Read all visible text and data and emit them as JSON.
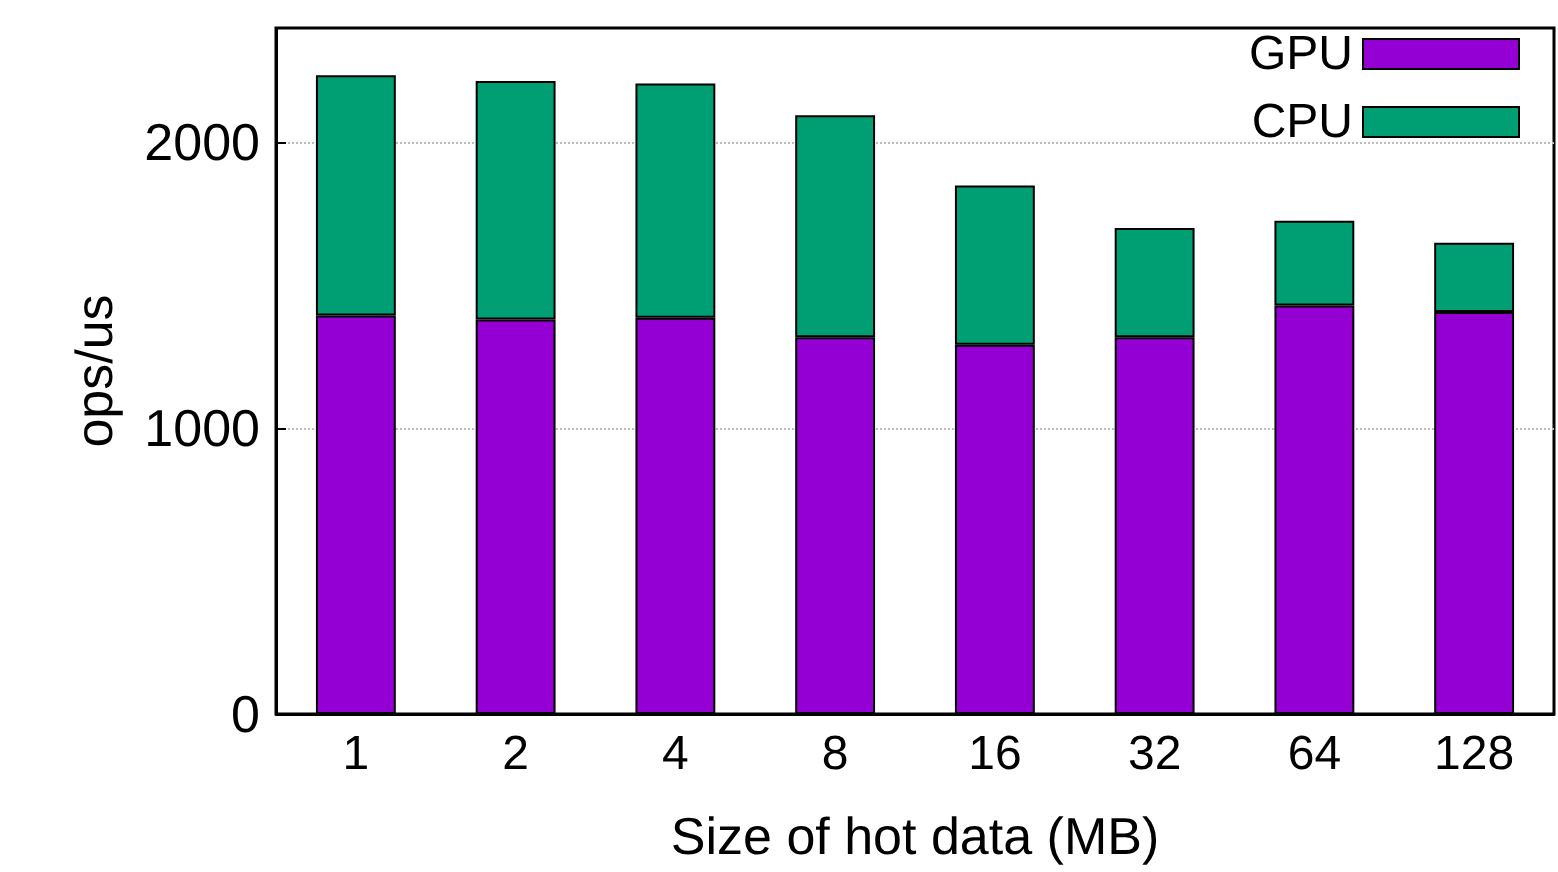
{
  "chart_data": {
    "type": "bar",
    "xlabel": "Size of hot data (MB)",
    "ylabel": "ops/us",
    "categories": [
      "1",
      "2",
      "4",
      "8",
      "16",
      "32",
      "64",
      "128"
    ],
    "stacked": true,
    "series": [
      {
        "name": "GPU",
        "color": "#9400d3",
        "values": [
          1394,
          1380,
          1386,
          1318,
          1292,
          1318,
          1429,
          1406
        ]
      },
      {
        "name": "CPU",
        "color": "#009e73",
        "values": [
          841,
          835,
          820,
          777,
          557,
          382,
          297,
          243
        ]
      }
    ],
    "ylim": [
      0,
      2400
    ],
    "yticks": [
      0,
      1000,
      2000
    ],
    "grid": "y",
    "legend": "top right"
  }
}
